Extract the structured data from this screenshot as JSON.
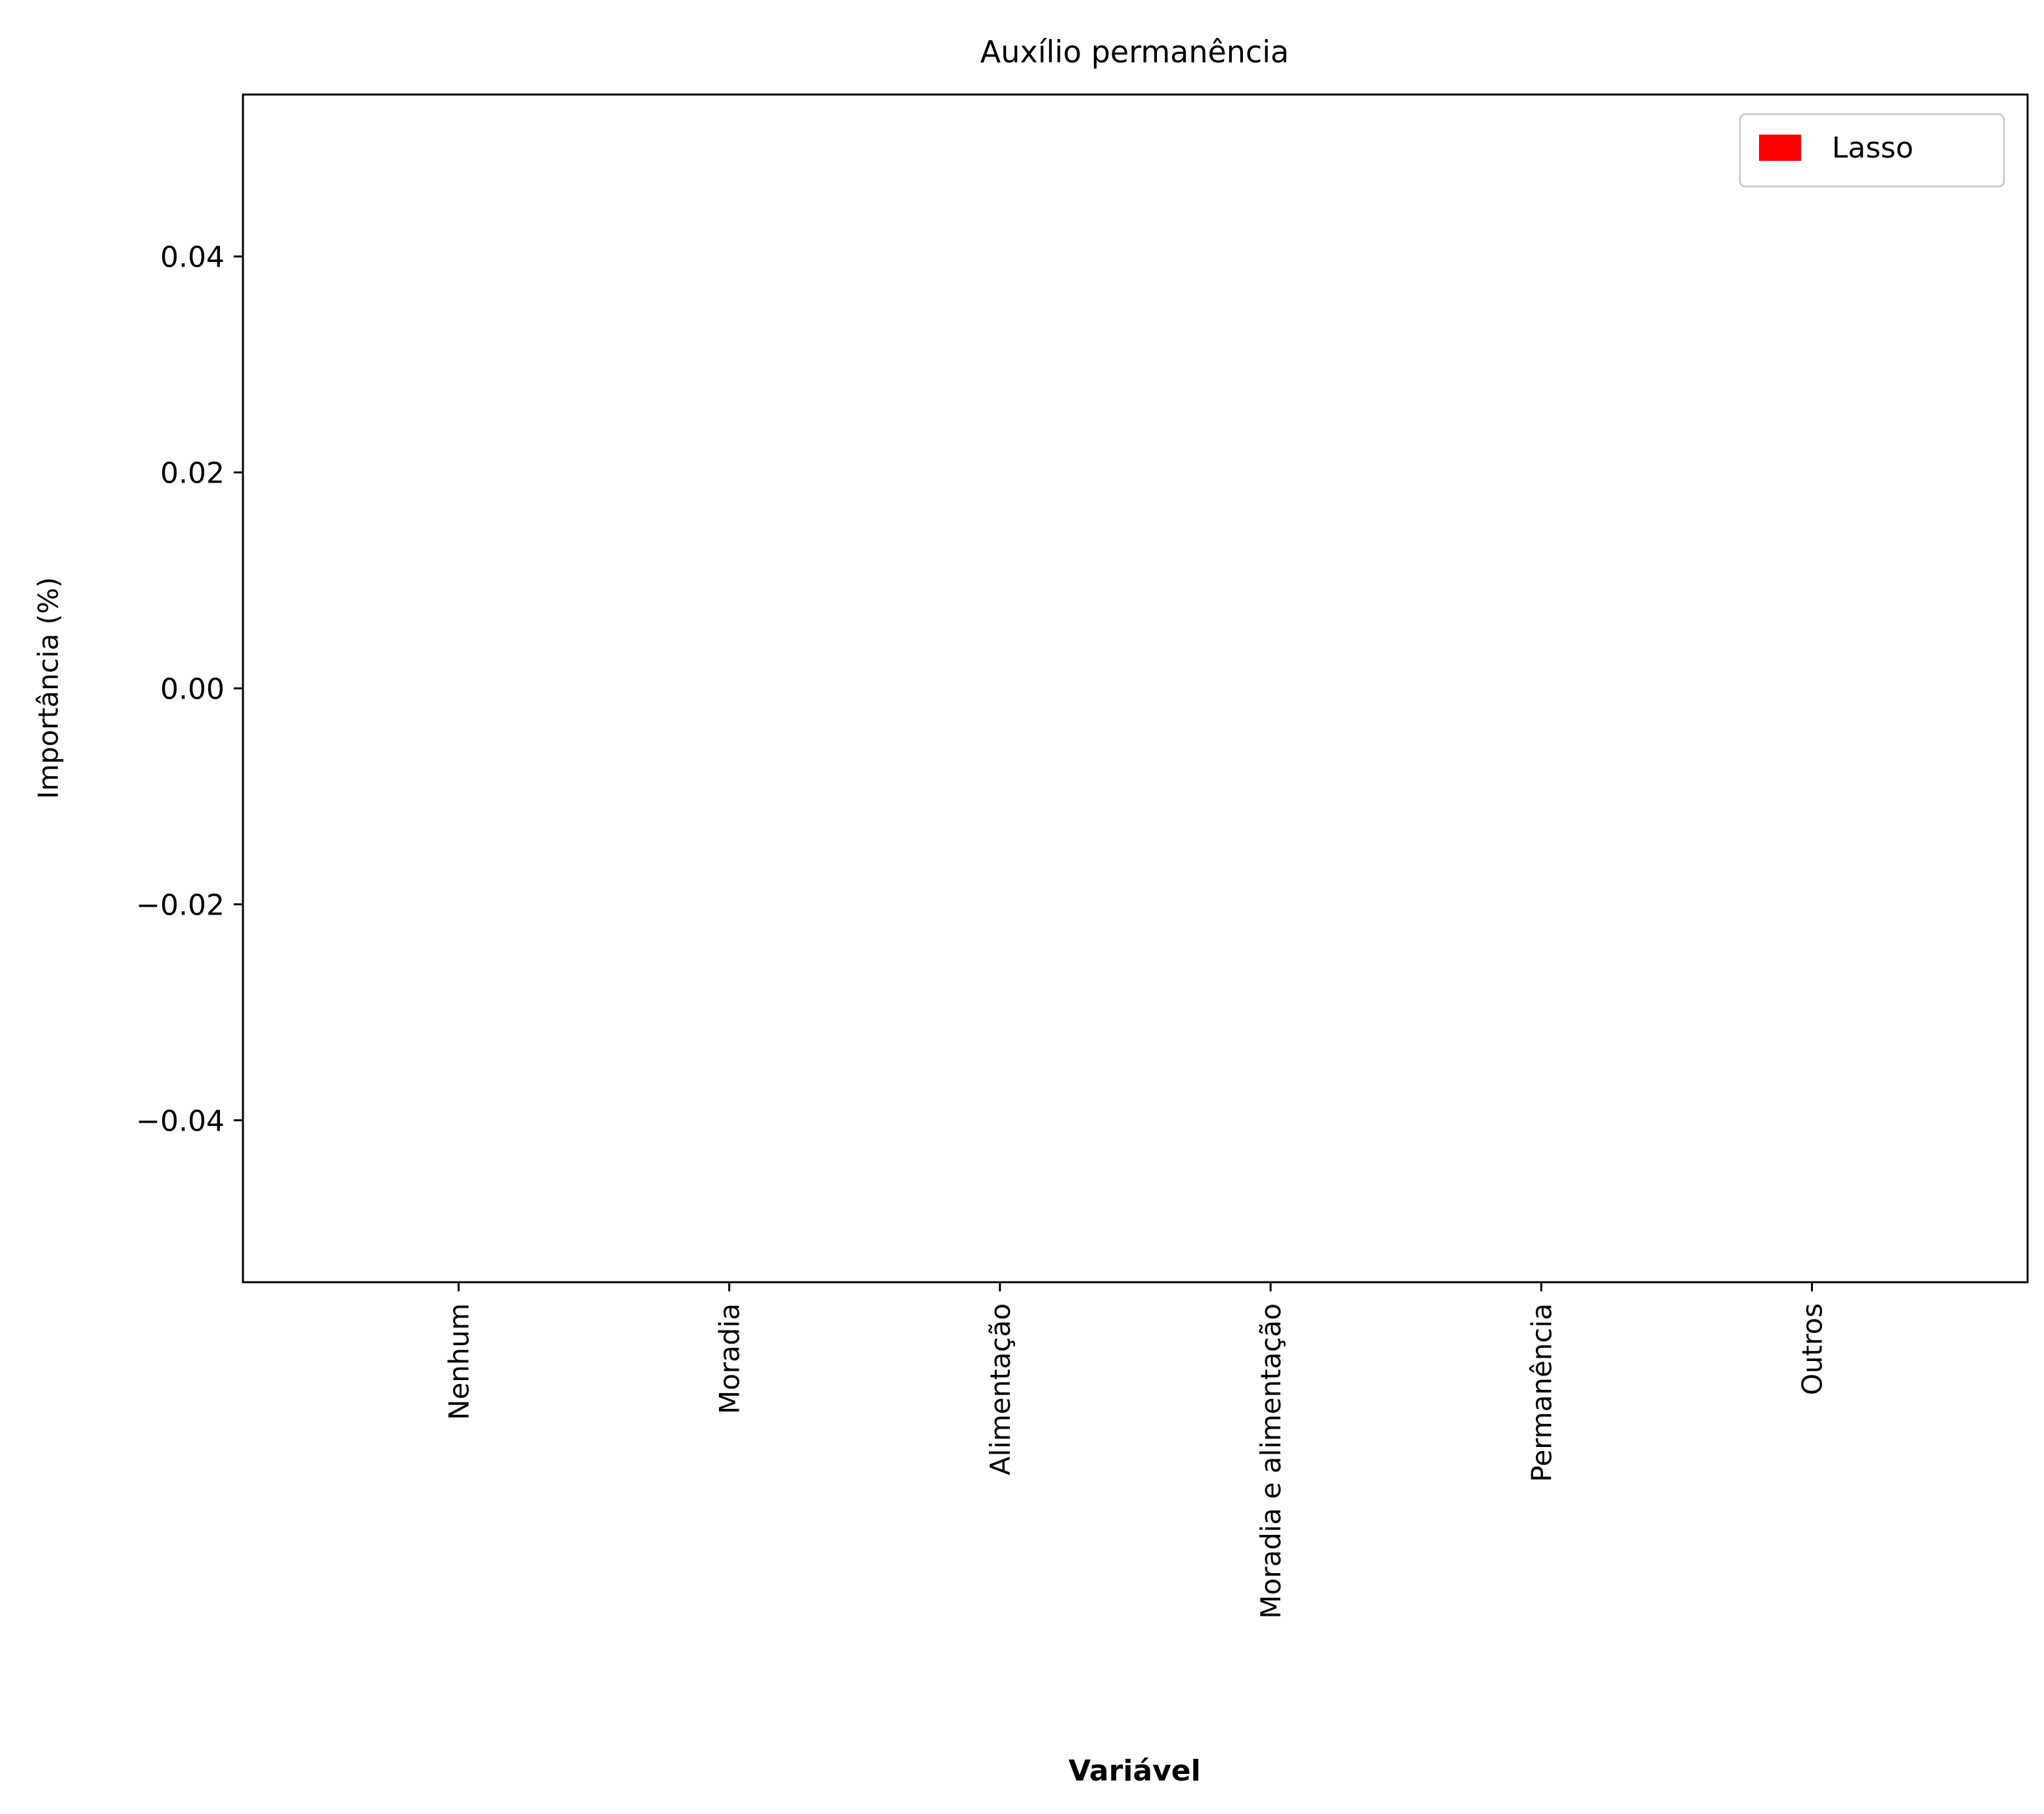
{
  "chart_data": {
    "type": "bar",
    "title": "Auxílio permanência",
    "xlabel": "Variável",
    "ylabel": "Importância (%)",
    "categories": [
      "Nenhum",
      "Moradia",
      "Alimentação",
      "Moradia e alimentação",
      "Permanência",
      "Outros"
    ],
    "series": [
      {
        "name": "Lasso",
        "color": "#ff0000",
        "values": [
          0,
          0,
          0,
          0,
          0,
          0
        ]
      }
    ],
    "ylim": [
      -0.055,
      0.055
    ],
    "yticks": [
      -0.04,
      -0.02,
      0.0,
      0.02,
      0.04
    ],
    "ytick_labels": [
      "−0.04",
      "−0.02",
      "0.00",
      "0.02",
      "0.04"
    ],
    "grid": false,
    "legend_position": "top-right"
  }
}
